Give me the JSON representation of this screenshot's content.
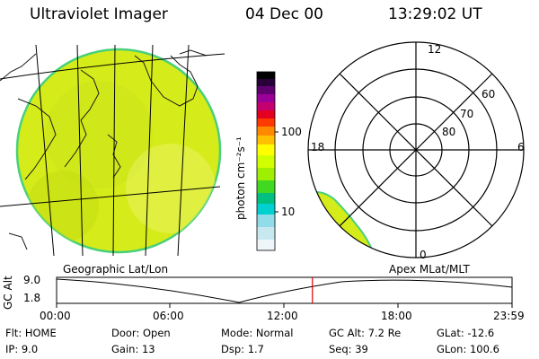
{
  "header": {
    "instrument": "Ultraviolet Imager",
    "date": "04 Dec 00",
    "time": "13:29:02 UT"
  },
  "geo_panel": {
    "label": "Geographic Lat/Lon"
  },
  "apex_panel": {
    "label": "Apex MLat/MLT"
  },
  "colorbar": {
    "unit_label": "photon cm⁻²s⁻¹",
    "ticks": [
      "100",
      "10"
    ],
    "colors": [
      "#000000",
      "#3a0050",
      "#800080",
      "#b0009a",
      "#d40050",
      "#ff0000",
      "#ff6a00",
      "#ffa000",
      "#ffd000",
      "#ffff00",
      "#c8ff00",
      "#60e000",
      "#00c070",
      "#00c0c0",
      "#80d8e0",
      "#c0e8f0",
      "#ffffff"
    ]
  },
  "polar": {
    "mlt_labels": {
      "top": "12",
      "left": "18",
      "right": "6",
      "bottom": "0"
    },
    "lat_labels": [
      "60",
      "70",
      "80"
    ]
  },
  "altitude_plot": {
    "axis_label": "GC Alt",
    "y_ticks": [
      "9.0",
      "1.8"
    ],
    "x_ticks": [
      "00:00",
      "06:00",
      "12:00",
      "18:00",
      "23:59"
    ],
    "current_time_hours": 13.48,
    "marker_color": "#e00000"
  },
  "info_rows": [
    [
      {
        "label": "Flt:",
        "value": "HOME"
      },
      {
        "label": "Door:",
        "value": "Open"
      },
      {
        "label": "Mode:",
        "value": "Normal"
      },
      {
        "label": "GC Alt:",
        "value": "7.2 Re"
      },
      {
        "label": "GLat:",
        "value": "-12.6"
      }
    ],
    [
      {
        "label": "IP:",
        "value": "9.0"
      },
      {
        "label": "Gain:",
        "value": "13"
      },
      {
        "label": "Dsp:",
        "value": "1.7"
      },
      {
        "label": "Seq:",
        "value": "39"
      },
      {
        "label": "GLon:",
        "value": "100.6"
      }
    ]
  ]
}
